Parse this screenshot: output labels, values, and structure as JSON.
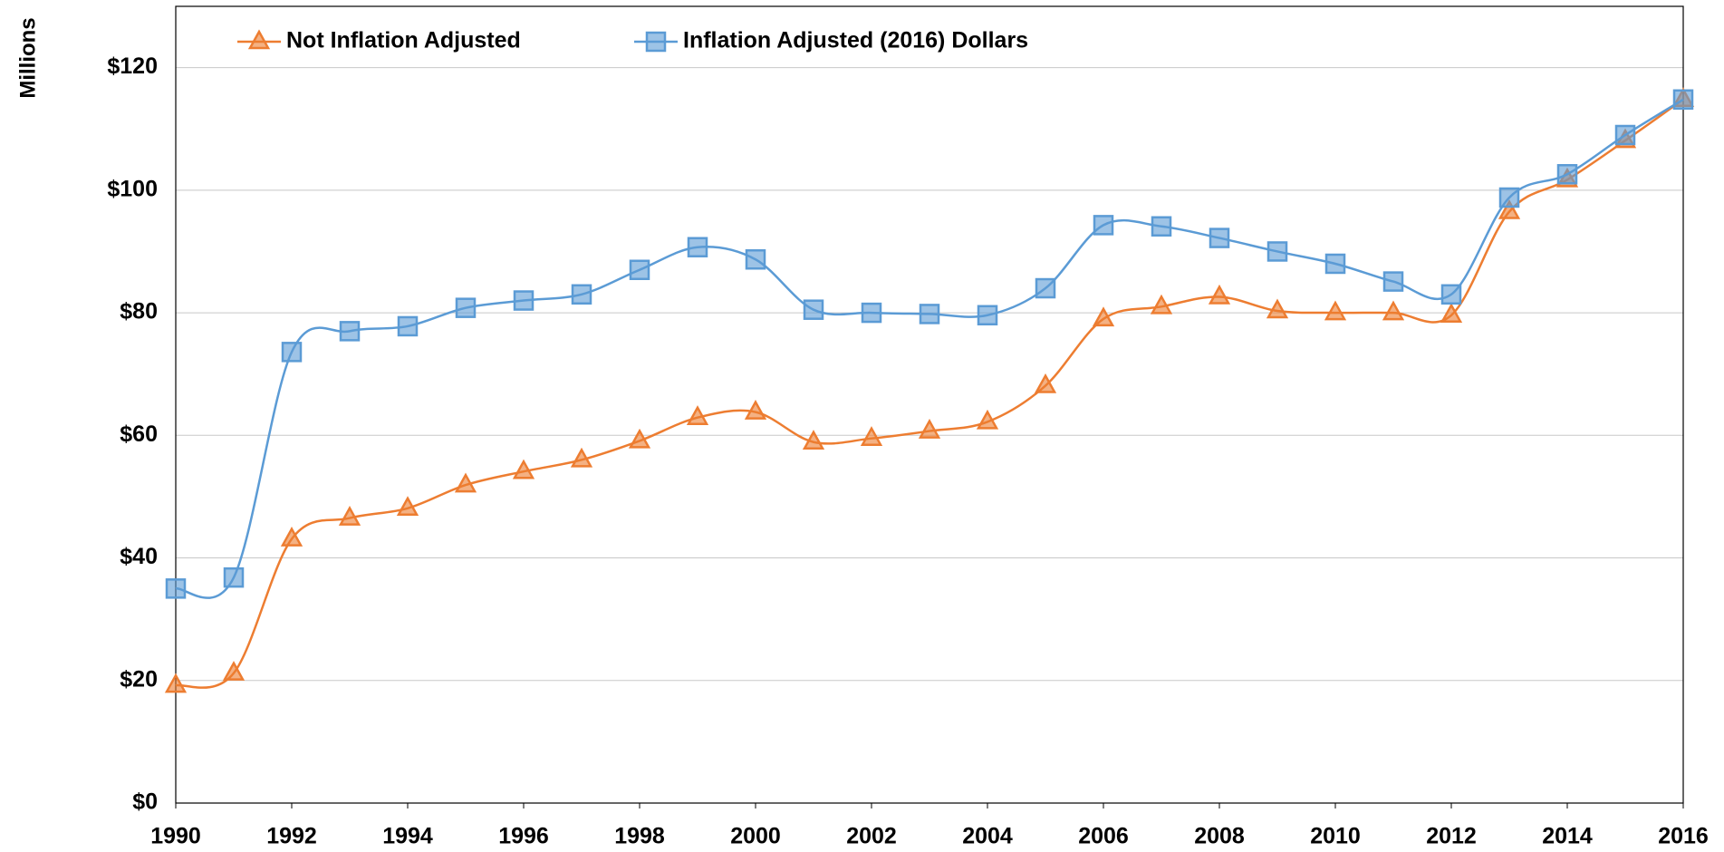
{
  "chart_data": {
    "type": "line",
    "y_label": "Millions",
    "x": [
      1990,
      1991,
      1992,
      1993,
      1994,
      1995,
      1996,
      1997,
      1998,
      1999,
      2000,
      2001,
      2002,
      2003,
      2004,
      2005,
      2006,
      2007,
      2008,
      2009,
      2010,
      2011,
      2012,
      2013,
      2014,
      2015,
      2016
    ],
    "series": [
      {
        "name": "Not Inflation Adjusted",
        "color": "#ED7D31",
        "marker": "triangle",
        "values": [
          19.2,
          21.2,
          43.1,
          46.5,
          48.1,
          51.9,
          54.1,
          56,
          59.1,
          62.9,
          63.8,
          58.9,
          59.5,
          60.7,
          62.2,
          68.1,
          79,
          81,
          82.6,
          80.3,
          80,
          80,
          79.6,
          96.5,
          101.7,
          108.1,
          114.8
        ]
      },
      {
        "name": "Inflation Adjusted (2016) Dollars",
        "color": "#5B9BD5",
        "marker": "square",
        "values": [
          35,
          36.8,
          73.6,
          77,
          77.8,
          80.8,
          82,
          83,
          87,
          90.7,
          88.7,
          80.5,
          80,
          79.8,
          79.6,
          84,
          94.3,
          94.1,
          92.2,
          90,
          88,
          85.1,
          83,
          98.8,
          102.6,
          109,
          114.8
        ]
      }
    ],
    "xlim": [
      1990,
      2016
    ],
    "xticks": [
      1990,
      1992,
      1994,
      1996,
      1998,
      2000,
      2002,
      2004,
      2006,
      2008,
      2010,
      2012,
      2014,
      2016
    ],
    "ylim": [
      0,
      130
    ],
    "yticks": [
      {
        "value": 0,
        "label": "$0"
      },
      {
        "value": 20,
        "label": "$20"
      },
      {
        "value": 40,
        "label": "$40"
      },
      {
        "value": 60,
        "label": "$60"
      },
      {
        "value": 80,
        "label": "$80"
      },
      {
        "value": 100,
        "label": "$100"
      },
      {
        "value": 120,
        "label": "$120"
      }
    ],
    "grid": true,
    "smooth": true,
    "legend": "top-left"
  }
}
